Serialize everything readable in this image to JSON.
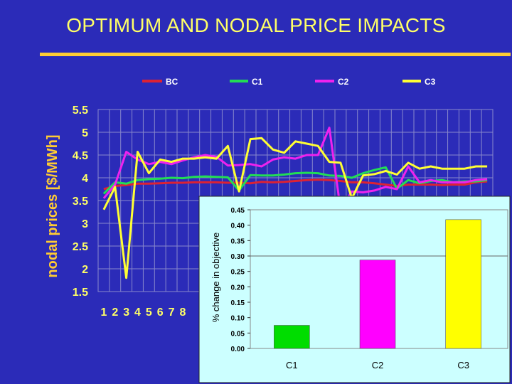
{
  "slide": {
    "title": "OPTIMUM AND NODAL PRICE IMPACTS"
  },
  "chart_data": [
    {
      "type": "line",
      "title": "",
      "ylabel": "nodal prices [$/MWh]",
      "xlabel": "",
      "ylim": [
        1.5,
        5.5
      ],
      "yticks": [
        "1.5",
        "2",
        "2.5",
        "3",
        "3.5",
        "4",
        "4.5",
        "5",
        "5.5"
      ],
      "x": [
        1,
        2,
        3,
        4,
        5,
        6,
        7,
        8,
        9,
        10,
        11,
        12,
        13,
        14,
        15,
        16,
        17,
        18,
        19,
        20,
        21,
        22,
        23,
        24,
        25,
        26,
        27,
        28,
        29,
        30,
        31,
        32,
        33,
        34,
        35
      ],
      "xtick_labels": [
        "1",
        "2",
        "3",
        "4",
        "5",
        "6",
        "7",
        "8"
      ],
      "legend_position": "top",
      "grid": true,
      "series": [
        {
          "name": "BC",
          "color": "#dd2233",
          "values": [
            3.75,
            3.82,
            3.84,
            3.87,
            3.87,
            3.88,
            3.89,
            3.89,
            3.9,
            3.9,
            3.9,
            3.89,
            3.89,
            3.88,
            3.91,
            3.9,
            3.91,
            3.93,
            3.95,
            3.96,
            3.95,
            3.93,
            3.9,
            3.9,
            3.88,
            3.85,
            3.82,
            3.85,
            3.85,
            3.85,
            3.84,
            3.85,
            3.85,
            3.9,
            3.92
          ]
        },
        {
          "name": "C1",
          "color": "#22dd55",
          "values": [
            3.65,
            3.9,
            3.87,
            3.95,
            3.97,
            3.98,
            4.0,
            3.99,
            4.02,
            4.03,
            4.02,
            4.01,
            3.72,
            4.06,
            4.05,
            4.05,
            4.07,
            4.1,
            4.11,
            4.1,
            4.05,
            4.04,
            4.0,
            4.1,
            4.17,
            4.23,
            3.76,
            3.95,
            3.88,
            3.93,
            3.95,
            3.9,
            3.92,
            3.92,
            3.95
          ]
        },
        {
          "name": "C2",
          "color": "#ee22ee",
          "values": [
            3.55,
            3.85,
            4.57,
            4.4,
            4.3,
            4.35,
            4.3,
            4.38,
            4.45,
            4.5,
            4.46,
            4.27,
            4.28,
            4.3,
            4.25,
            4.4,
            4.45,
            4.42,
            4.5,
            4.5,
            5.1,
            3.3,
            3.7,
            3.68,
            3.72,
            3.8,
            3.75,
            4.25,
            3.9,
            3.95,
            3.9,
            3.9,
            3.9,
            3.95,
            3.97
          ]
        },
        {
          "name": "C3",
          "color": "#ffff33",
          "values": [
            3.3,
            3.8,
            1.8,
            4.57,
            4.1,
            4.4,
            4.35,
            4.42,
            4.42,
            4.45,
            4.42,
            4.7,
            3.7,
            4.85,
            4.87,
            4.62,
            4.55,
            4.8,
            4.75,
            4.7,
            4.35,
            4.33,
            3.55,
            4.05,
            4.08,
            4.15,
            4.07,
            4.33,
            4.2,
            4.25,
            4.2,
            4.2,
            4.2,
            4.25,
            4.25
          ]
        }
      ]
    },
    {
      "type": "bar",
      "title": "",
      "xlabel": "",
      "ylabel": "% change in objective",
      "ylim": [
        0,
        0.45
      ],
      "yticks": [
        "0.00",
        "0.05",
        "0.10",
        "0.15",
        "0.20",
        "0.25",
        "0.30",
        "0.35",
        "0.40",
        "0.45"
      ],
      "categories": [
        "C1",
        "C2",
        "C3"
      ],
      "values": [
        0.075,
        0.287,
        0.418
      ],
      "colors": [
        "#00dd00",
        "#ff00ff",
        "#ffff00"
      ],
      "grid": true
    }
  ]
}
